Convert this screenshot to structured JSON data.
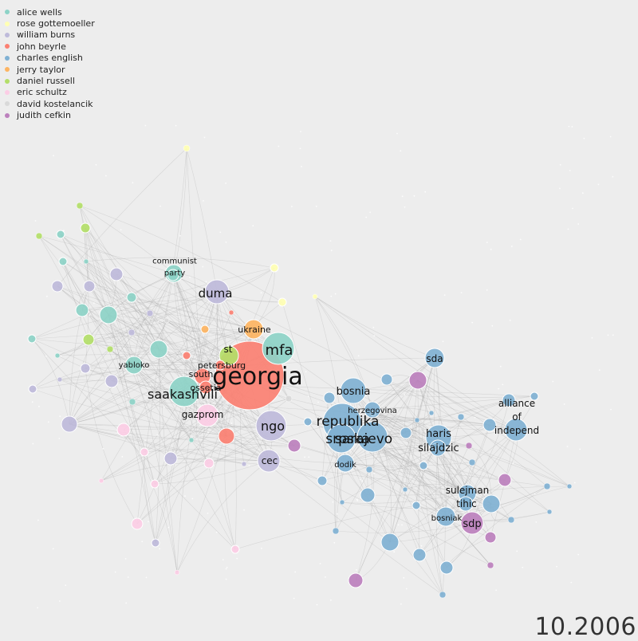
{
  "legend": [
    {
      "name": "alice wells",
      "color": "#8dd3c7"
    },
    {
      "name": "rose gottemoeller",
      "color": "#ffffb3"
    },
    {
      "name": "william burns",
      "color": "#bebada"
    },
    {
      "name": "john beyrle",
      "color": "#fb8072"
    },
    {
      "name": "charles english",
      "color": "#80b1d3"
    },
    {
      "name": "jerry taylor",
      "color": "#fdb462"
    },
    {
      "name": "daniel russell",
      "color": "#b3de69"
    },
    {
      "name": "eric schultz",
      "color": "#fccde5"
    },
    {
      "name": "david kostelancik",
      "color": "#d9d9d9"
    },
    {
      "name": "judith cefkin",
      "color": "#bc80bd"
    }
  ],
  "date": "10.2006",
  "node_labels": [
    {
      "id": "georgia",
      "lines": [
        "georgia"
      ]
    },
    {
      "id": "mfa",
      "lines": [
        "mfa"
      ]
    },
    {
      "id": "duma",
      "lines": [
        "duma"
      ]
    },
    {
      "id": "saakashvili",
      "lines": [
        "saakashvili"
      ]
    },
    {
      "id": "ngo",
      "lines": [
        "ngo"
      ]
    },
    {
      "id": "cec",
      "lines": [
        "cec"
      ]
    },
    {
      "id": "gazprom",
      "lines": [
        "gazprom"
      ]
    },
    {
      "id": "ukraine",
      "lines": [
        "ukraine"
      ]
    },
    {
      "id": "st",
      "lines": [
        "st"
      ]
    },
    {
      "id": "petersburg",
      "lines": [
        "petersburg"
      ]
    },
    {
      "id": "south",
      "lines": [
        "south"
      ]
    },
    {
      "id": "ossetia",
      "lines": [
        "ossetia"
      ]
    },
    {
      "id": "yabloko",
      "lines": [
        "yabloko"
      ]
    },
    {
      "id": "communist-party",
      "lines": [
        "communist",
        "party"
      ]
    },
    {
      "id": "republika",
      "lines": [
        "republika"
      ]
    },
    {
      "id": "srpska",
      "lines": [
        "srpska"
      ]
    },
    {
      "id": "sarajevo",
      "lines": [
        "sarajevo"
      ]
    },
    {
      "id": "bosnia",
      "lines": [
        "bosnia"
      ]
    },
    {
      "id": "herzegovina",
      "lines": [
        "herzegovina"
      ]
    },
    {
      "id": "sda",
      "lines": [
        "sda"
      ]
    },
    {
      "id": "haris",
      "lines": [
        "haris"
      ]
    },
    {
      "id": "silajdzic",
      "lines": [
        "silajdzic"
      ]
    },
    {
      "id": "alliance-of-independ",
      "lines": [
        "alliance",
        "of",
        "independ"
      ]
    },
    {
      "id": "dodik",
      "lines": [
        "dodik"
      ]
    },
    {
      "id": "sulejman",
      "lines": [
        "sulejman"
      ]
    },
    {
      "id": "tihic",
      "lines": [
        "tihic"
      ]
    },
    {
      "id": "bosniak",
      "lines": [
        "bosniak"
      ]
    },
    {
      "id": "sdp",
      "lines": [
        "sdp"
      ]
    }
  ]
}
